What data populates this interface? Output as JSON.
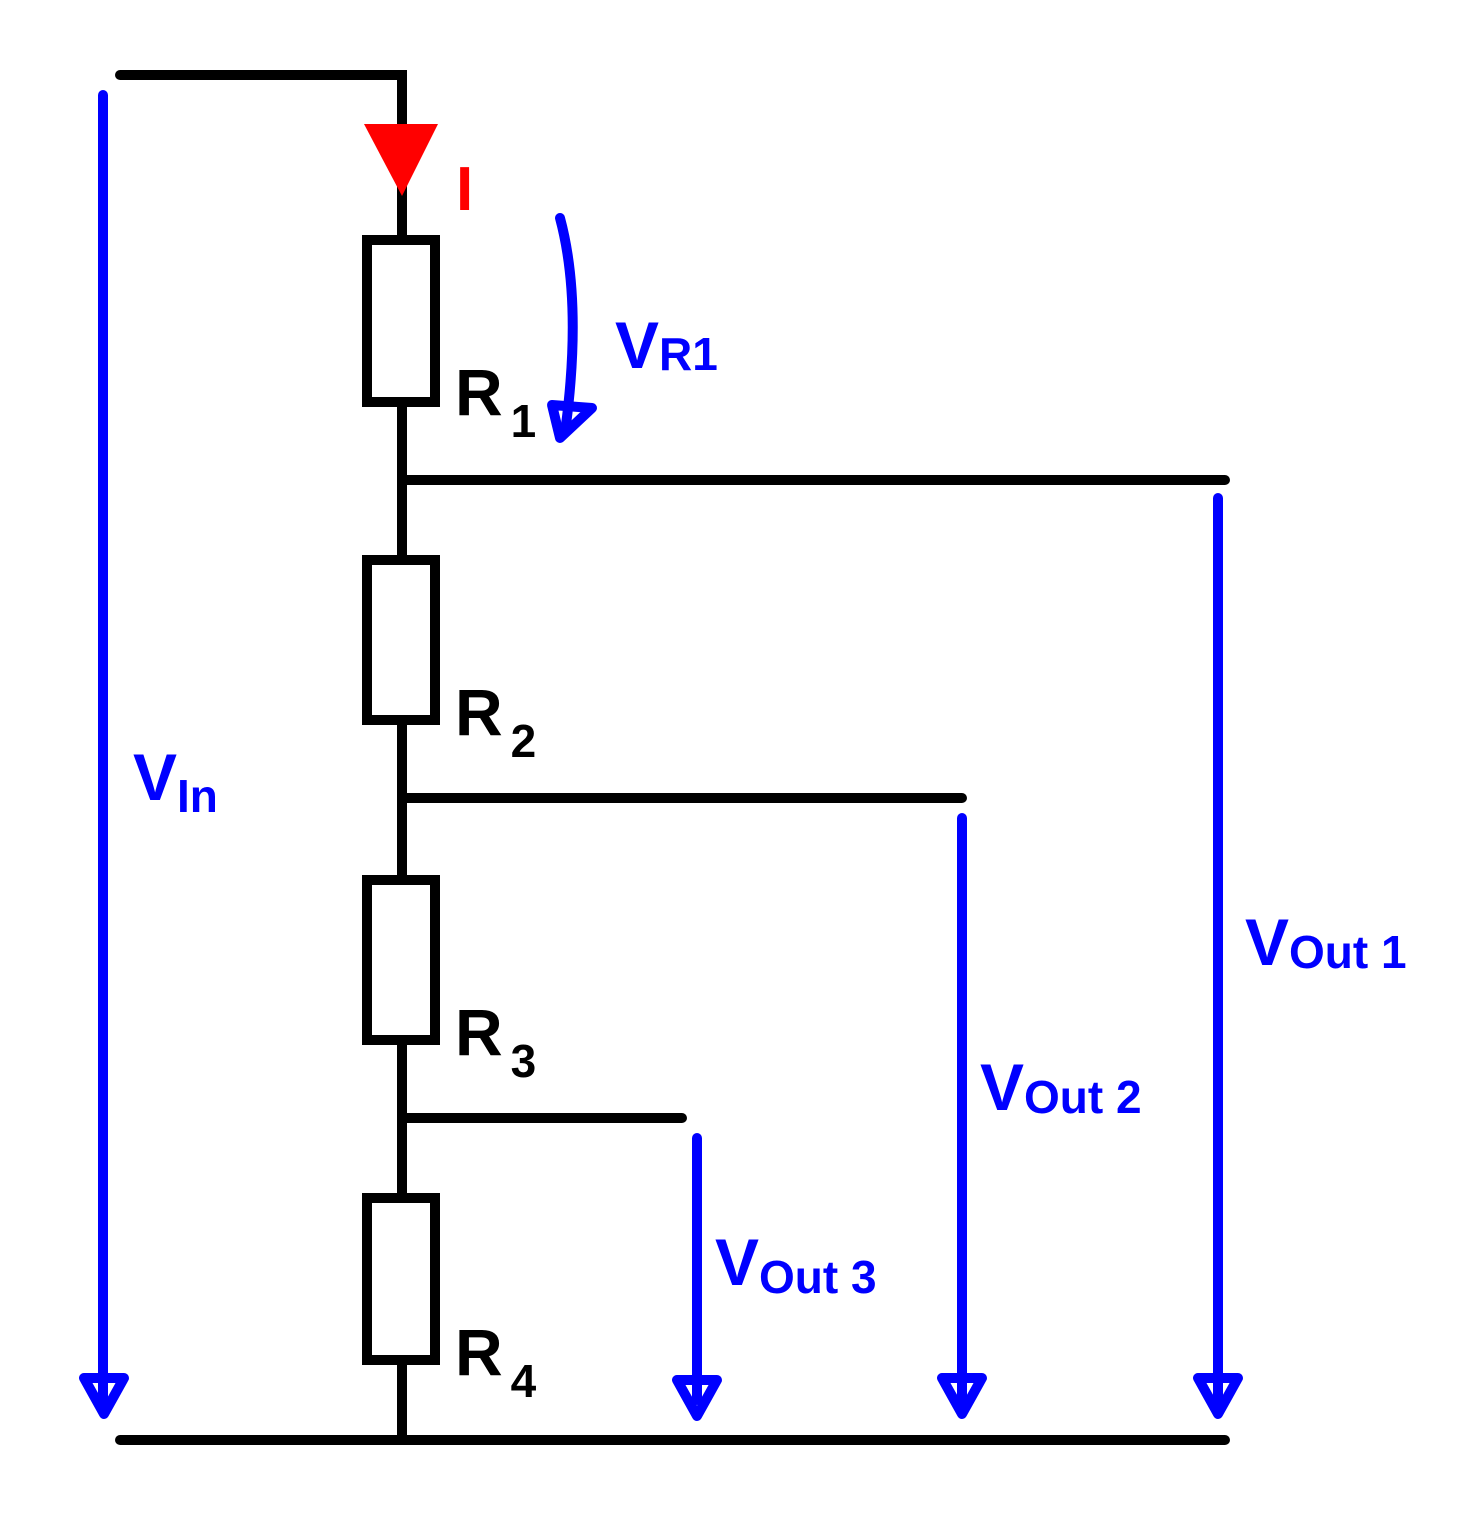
{
  "current": {
    "label": "I"
  },
  "resistors": [
    {
      "letter": "R",
      "index": "1"
    },
    {
      "letter": "R",
      "index": "2"
    },
    {
      "letter": "R",
      "index": "3"
    },
    {
      "letter": "R",
      "index": "4"
    }
  ],
  "voltages": {
    "v_r1": {
      "symbol": "V",
      "subscript": "R1"
    },
    "v_in": {
      "symbol": "V",
      "subscript": "In"
    },
    "v_out_1": {
      "symbol": "V",
      "subscript": "Out 1"
    },
    "v_out_2": {
      "symbol": "V",
      "subscript": "Out 2"
    },
    "v_out_3": {
      "symbol": "V",
      "subscript": "Out 3"
    }
  }
}
